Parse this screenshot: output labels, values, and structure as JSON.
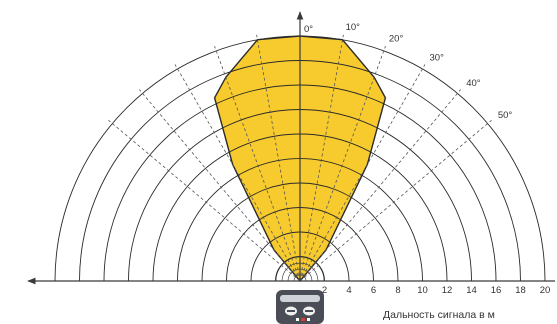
{
  "diagram": {
    "angle_labels": [
      "0°",
      "10°",
      "20°",
      "30°",
      "40°",
      "50°"
    ],
    "distance_ticks": [
      "2",
      "4",
      "6",
      "8",
      "10",
      "12",
      "14",
      "16",
      "18",
      "20"
    ],
    "axis_caption": "Дальность сигнала в м",
    "zone": {
      "outline_ranges_m": [
        {
          "angle_deg": 0,
          "range_m": 20
        },
        {
          "angle_deg": 10,
          "range_m": 20
        },
        {
          "angle_deg": 20,
          "range_m": 17.7
        },
        {
          "angle_deg": 25,
          "range_m": 16.5
        },
        {
          "angle_deg": 30,
          "range_m": 11
        },
        {
          "angle_deg": 40,
          "range_m": 3.3
        }
      ],
      "fill_color": "#f7cb2e",
      "outline_color": "#2a2a2a"
    },
    "colors": {
      "rings": "#2a2a2a",
      "spokes": "#555555",
      "axis": "#3a3a3a",
      "device_body": "#4a4d55",
      "device_accent": "#e03a2f"
    },
    "device_icon": "motion-sensor-icon"
  }
}
